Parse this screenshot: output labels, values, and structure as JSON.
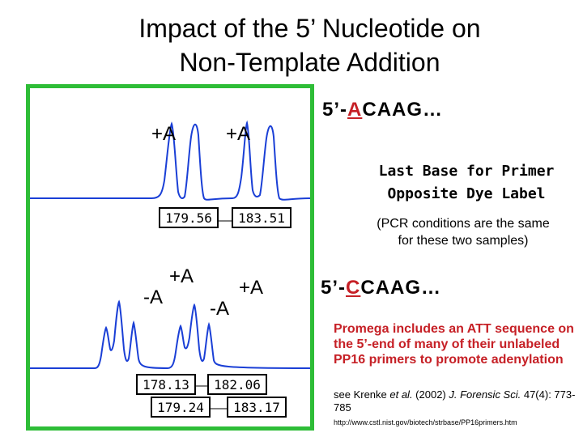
{
  "slide": {
    "title_line1": "Impact of the 5’ Nucleotide on",
    "title_line2": "Non-Template Addition"
  },
  "panel": {
    "border_color": "#2ebd37",
    "trace_color": "#1a3fd6",
    "top": {
      "label_left": "+A",
      "label_right": "+A",
      "sizes": [
        "179.56",
        "183.51"
      ]
    },
    "bottom": {
      "label_plus_left": "+A",
      "label_minus_left": "-A",
      "label_plus_right": "+A",
      "label_minus_right": "-A",
      "sizes_row1": [
        "178.13",
        "182.06"
      ],
      "sizes_row2": [
        "179.24",
        "183.17"
      ]
    }
  },
  "sequence_top": {
    "prefix": "5’-",
    "base": "A",
    "rest": "CAAG…"
  },
  "last_base_note": {
    "line1": "Last Base for Primer",
    "line2": "Opposite Dye Label"
  },
  "pcr_note": {
    "line1": "(PCR conditions are the same",
    "line2": "for these two samples)"
  },
  "sequence_bottom": {
    "prefix": "5’-",
    "base": "C",
    "rest": "CAAG…"
  },
  "promega_note": "Promega includes an ATT sequence on the 5’-end of many of their unlabeled PP16 primers to promote adenylation",
  "citation": {
    "before": "see Krenke ",
    "et_al": "et al.",
    "middle": " (2002) ",
    "journal": "J. Forensic Sci.",
    "after": " 47(4): 773-785"
  },
  "url": "http://www.cstl.nist.gov/biotech/strbase/PP16primers.htm",
  "accent_red": "#c62026"
}
